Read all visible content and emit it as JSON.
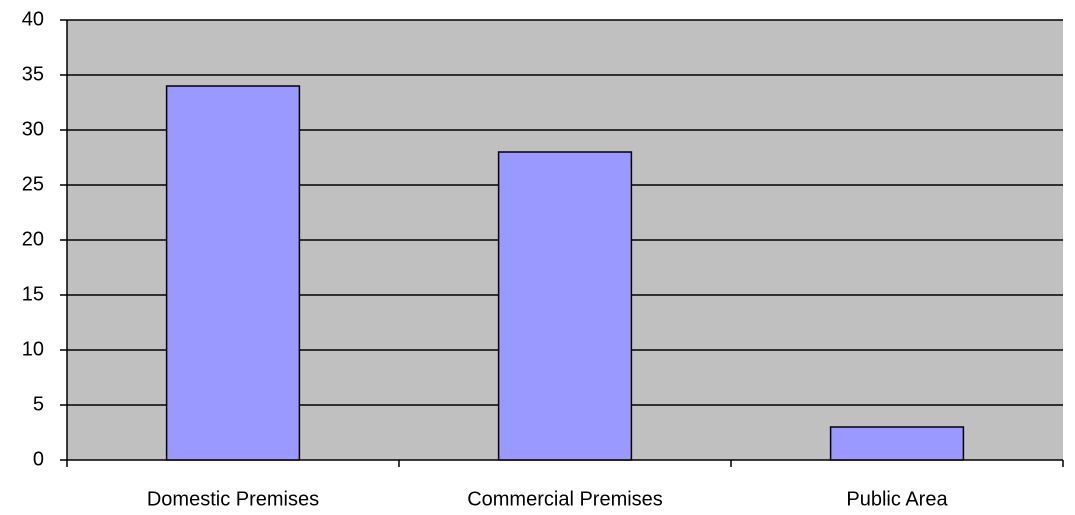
{
  "chart_data": {
    "type": "bar",
    "categories": [
      "Domestic Premises",
      "Commercial Premises",
      "Public Area"
    ],
    "values": [
      34,
      28,
      3
    ],
    "color": "#9999ff",
    "ylim": [
      0,
      40
    ],
    "yticks": [
      0,
      5,
      10,
      15,
      20,
      25,
      30,
      35,
      40
    ],
    "grid": true
  }
}
